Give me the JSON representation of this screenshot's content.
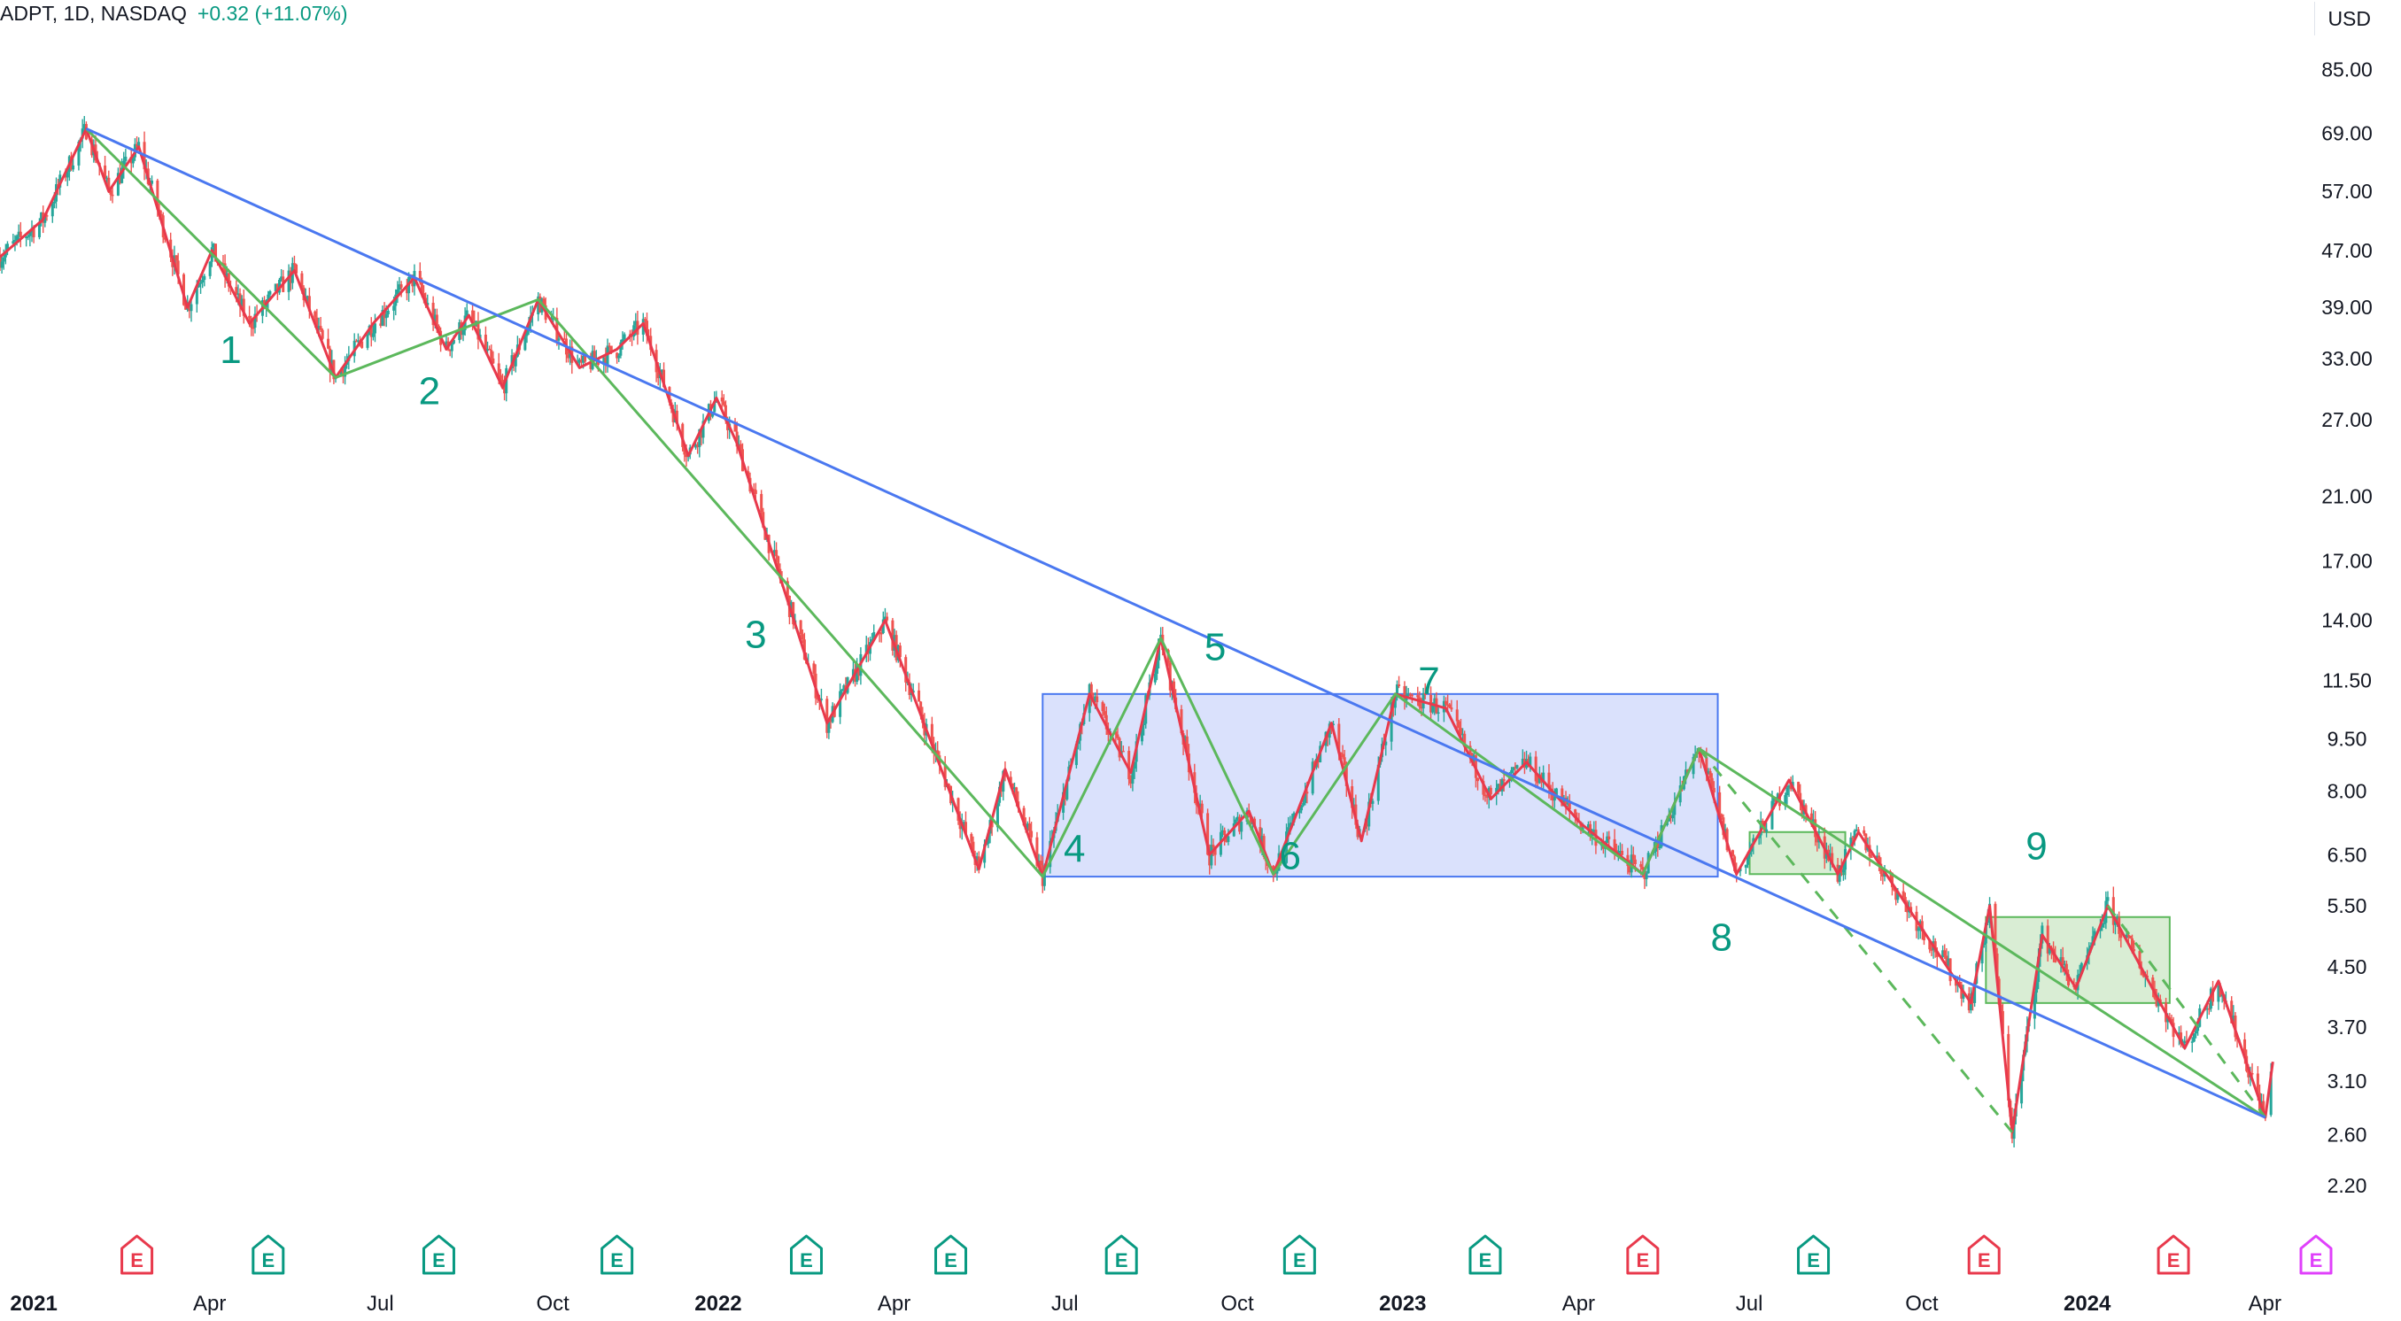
{
  "header": {
    "symbol": "ADPT, 1D, NASDAQ",
    "change": "+0.32 (+11.07%)"
  },
  "currency_button": "USD",
  "colors": {
    "up": "#26a69a",
    "down": "#ef5350",
    "zigzag_red": "#e8394c",
    "zigzag_green": "#5cb85c",
    "trendline": "#4a78f0",
    "range_box_fill": "#d3dcfb",
    "range_box_border": "#4a78f0",
    "green_box_fill": "#cfe9c9",
    "green_box_border": "#5cb85c",
    "wave_label": "#089981",
    "earnings_red": "#e8394c",
    "earnings_green": "#089981",
    "earnings_future": "#e040fb"
  },
  "chart_data": {
    "type": "candlestick",
    "log_scale": true,
    "x_range": [
      "2020-12-14",
      "2024-05-02"
    ],
    "ylim": [
      2.0,
      95.0
    ],
    "y_ticks": [
      85,
      69,
      57,
      47,
      39,
      33,
      27,
      21,
      17,
      14,
      11.5,
      9.5,
      8,
      6.5,
      5.5,
      4.5,
      3.7,
      3.1,
      2.6,
      2.2
    ],
    "y_tick_labels": [
      "85.00",
      "69.00",
      "57.00",
      "47.00",
      "39.00",
      "33.00",
      "27.00",
      "21.00",
      "17.00",
      "14.00",
      "11.50",
      "9.50",
      "8.00",
      "6.50",
      "5.50",
      "4.50",
      "3.70",
      "3.10",
      "2.60",
      "2.20"
    ],
    "x_ticks": [
      {
        "date": "2021-01-01",
        "label": "2021",
        "bold": true
      },
      {
        "date": "2021-04-01",
        "label": "Apr",
        "bold": false
      },
      {
        "date": "2021-07-01",
        "label": "Jul",
        "bold": false
      },
      {
        "date": "2021-10-01",
        "label": "Oct",
        "bold": false
      },
      {
        "date": "2022-01-01",
        "label": "2022",
        "bold": true
      },
      {
        "date": "2022-04-01",
        "label": "Apr",
        "bold": false
      },
      {
        "date": "2022-07-01",
        "label": "Jul",
        "bold": false
      },
      {
        "date": "2022-10-01",
        "label": "Oct",
        "bold": false
      },
      {
        "date": "2023-01-01",
        "label": "2023",
        "bold": true
      },
      {
        "date": "2023-04-01",
        "label": "Apr",
        "bold": false
      },
      {
        "date": "2023-07-01",
        "label": "Jul",
        "bold": false
      },
      {
        "date": "2023-10-01",
        "label": "Oct",
        "bold": false
      },
      {
        "date": "2024-01-01",
        "label": "2024",
        "bold": true
      },
      {
        "date": "2024-04-01",
        "label": "Apr",
        "bold": false
      }
    ],
    "price_path": [
      [
        "2020-12-14",
        46
      ],
      [
        "2021-01-06",
        52
      ],
      [
        "2021-01-29",
        70
      ],
      [
        "2021-02-10",
        57
      ],
      [
        "2021-02-26",
        66
      ],
      [
        "2021-03-24",
        39
      ],
      [
        "2021-04-06",
        47
      ],
      [
        "2021-04-26",
        37
      ],
      [
        "2021-05-20",
        44
      ],
      [
        "2021-06-11",
        31
      ],
      [
        "2021-07-01",
        37
      ],
      [
        "2021-07-23",
        43
      ],
      [
        "2021-08-09",
        34
      ],
      [
        "2021-08-21",
        38
      ],
      [
        "2021-09-08",
        30
      ],
      [
        "2021-09-27",
        40
      ],
      [
        "2021-10-19",
        32
      ],
      [
        "2021-11-08",
        34
      ],
      [
        "2021-11-22",
        37
      ],
      [
        "2021-12-16",
        24
      ],
      [
        "2021-12-31",
        29
      ],
      [
        "2022-01-11",
        25
      ],
      [
        "2022-02-28",
        10
      ],
      [
        "2022-03-31",
        14
      ],
      [
        "2022-05-20",
        6.2
      ],
      [
        "2022-06-03",
        8.6
      ],
      [
        "2022-06-23",
        6.05
      ],
      [
        "2022-07-18",
        11
      ],
      [
        "2022-08-09",
        8.5
      ],
      [
        "2022-08-25",
        13.2
      ],
      [
        "2022-09-20",
        6.5
      ],
      [
        "2022-10-11",
        7.5
      ],
      [
        "2022-10-24",
        6.1
      ],
      [
        "2022-11-24",
        10
      ],
      [
        "2022-12-10",
        6.8
      ],
      [
        "2022-12-28",
        11
      ],
      [
        "2023-01-24",
        10.5
      ],
      [
        "2023-02-17",
        7.8
      ],
      [
        "2023-03-08",
        8.8
      ],
      [
        "2023-04-06",
        7.2
      ],
      [
        "2023-05-09",
        6.1
      ],
      [
        "2023-06-08",
        9.2
      ],
      [
        "2023-06-28",
        6.1
      ],
      [
        "2023-07-26",
        8.3
      ],
      [
        "2023-08-21",
        6.1
      ],
      [
        "2023-09-01",
        7
      ],
      [
        "2023-10-31",
        4.0
      ],
      [
        "2023-11-10",
        5.5
      ],
      [
        "2023-11-22",
        2.62
      ],
      [
        "2023-12-08",
        5
      ],
      [
        "2023-12-26",
        4.2
      ],
      [
        "2024-01-12",
        5.5
      ],
      [
        "2024-02-22",
        3.45
      ],
      [
        "2024-03-11",
        4.3
      ],
      [
        "2024-04-05",
        2.75
      ],
      [
        "2024-04-09",
        3.3
      ]
    ],
    "annotations": {
      "wave_labels": [
        {
          "text": "1",
          "date": "2021-04-16",
          "price": 32.5
        },
        {
          "text": "2",
          "date": "2021-07-31",
          "price": 28.4
        },
        {
          "text": "3",
          "date": "2022-01-21",
          "price": 12.8
        },
        {
          "text": "4",
          "date": "2022-07-10",
          "price": 6.35
        },
        {
          "text": "5",
          "date": "2022-09-23",
          "price": 12.3
        },
        {
          "text": "6",
          "date": "2022-11-02",
          "price": 6.2
        },
        {
          "text": "7",
          "date": "2023-01-15",
          "price": 11.0
        },
        {
          "text": "8",
          "date": "2023-06-20",
          "price": 4.75
        },
        {
          "text": "9",
          "date": "2023-12-05",
          "price": 6.4
        }
      ],
      "trendline": [
        [
          "2021-01-29",
          70
        ],
        [
          "2024-04-05",
          2.75
        ]
      ],
      "range_box": {
        "from": "2022-06-23",
        "to": "2023-06-18",
        "top": 11.0,
        "bottom": 6.05
      },
      "green_boxes": [
        {
          "from": "2023-07-05",
          "to": "2023-08-25",
          "top": 7.0,
          "bottom": 6.1
        },
        {
          "from": "2023-11-08",
          "to": "2024-02-14",
          "top": 5.3,
          "bottom": 4.0
        }
      ],
      "green_lines": [
        [
          "2021-01-29",
          70
        ],
        [
          "2021-06-11",
          31
        ],
        [
          "2021-09-27",
          40
        ],
        [
          "2022-06-23",
          6.05
        ],
        [
          "2022-08-25",
          13.2
        ],
        [
          "2022-10-24",
          6.1
        ],
        [
          "2022-12-28",
          11
        ],
        [
          "2023-05-09",
          6.1
        ],
        [
          "2023-06-08",
          9.2
        ],
        [
          "2024-04-05",
          2.75
        ]
      ],
      "green_dashed": [
        [
          [
            "2023-06-08",
            9.2
          ],
          [
            "2023-11-22",
            2.62
          ]
        ],
        [
          [
            "2024-01-12",
            5.5
          ],
          [
            "2024-04-05",
            2.75
          ]
        ]
      ],
      "earnings": [
        {
          "date": "2021-02-25",
          "label": "E",
          "kind": "red"
        },
        {
          "date": "2021-05-06",
          "label": "E",
          "kind": "green"
        },
        {
          "date": "2021-08-05",
          "label": "E",
          "kind": "green"
        },
        {
          "date": "2021-11-08",
          "label": "E",
          "kind": "green"
        },
        {
          "date": "2022-02-17",
          "label": "E",
          "kind": "green"
        },
        {
          "date": "2022-05-05",
          "label": "E",
          "kind": "green"
        },
        {
          "date": "2022-08-04",
          "label": "E",
          "kind": "green"
        },
        {
          "date": "2022-11-07",
          "label": "E",
          "kind": "green"
        },
        {
          "date": "2023-02-14",
          "label": "E",
          "kind": "green"
        },
        {
          "date": "2023-05-09",
          "label": "E",
          "kind": "red"
        },
        {
          "date": "2023-08-08",
          "label": "E",
          "kind": "green"
        },
        {
          "date": "2023-11-07",
          "label": "E",
          "kind": "red"
        },
        {
          "date": "2024-02-16",
          "label": "E",
          "kind": "red"
        },
        {
          "date": "2024-05-02",
          "label": "E",
          "kind": "future"
        }
      ]
    }
  }
}
